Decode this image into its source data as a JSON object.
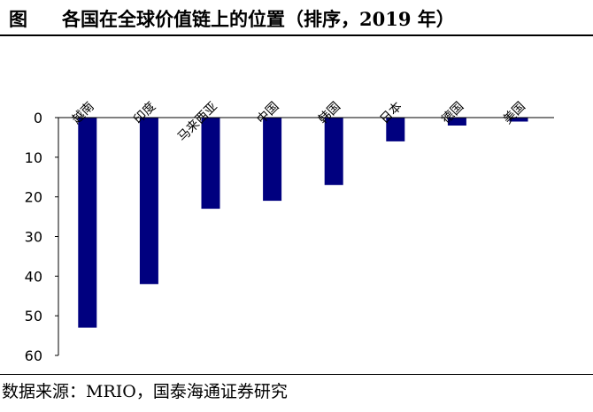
{
  "figure": {
    "prefix": "图",
    "title": "各国在全球价值链上的位置（排序，2019 年）",
    "source": "数据来源：MRIO，国泰海通证券研究"
  },
  "chart_data": {
    "type": "bar",
    "orientation": "vertical-inverted",
    "categories": [
      "越南",
      "印度",
      "马来西亚",
      "中国",
      "韩国",
      "日本",
      "德国",
      "美国"
    ],
    "values": [
      53,
      42,
      23,
      21,
      17,
      6,
      2,
      1
    ],
    "title": "各国在全球价值链上的位置（排序，2019 年）",
    "xlabel": "",
    "ylabel": "",
    "ylim": [
      0,
      60
    ],
    "yticks": [
      0,
      10,
      20,
      30,
      40,
      50,
      60
    ],
    "y_axis_inverted": true,
    "x_axis_position": "top",
    "grid": false,
    "legend": "none",
    "bar_color": "#00007F"
  }
}
